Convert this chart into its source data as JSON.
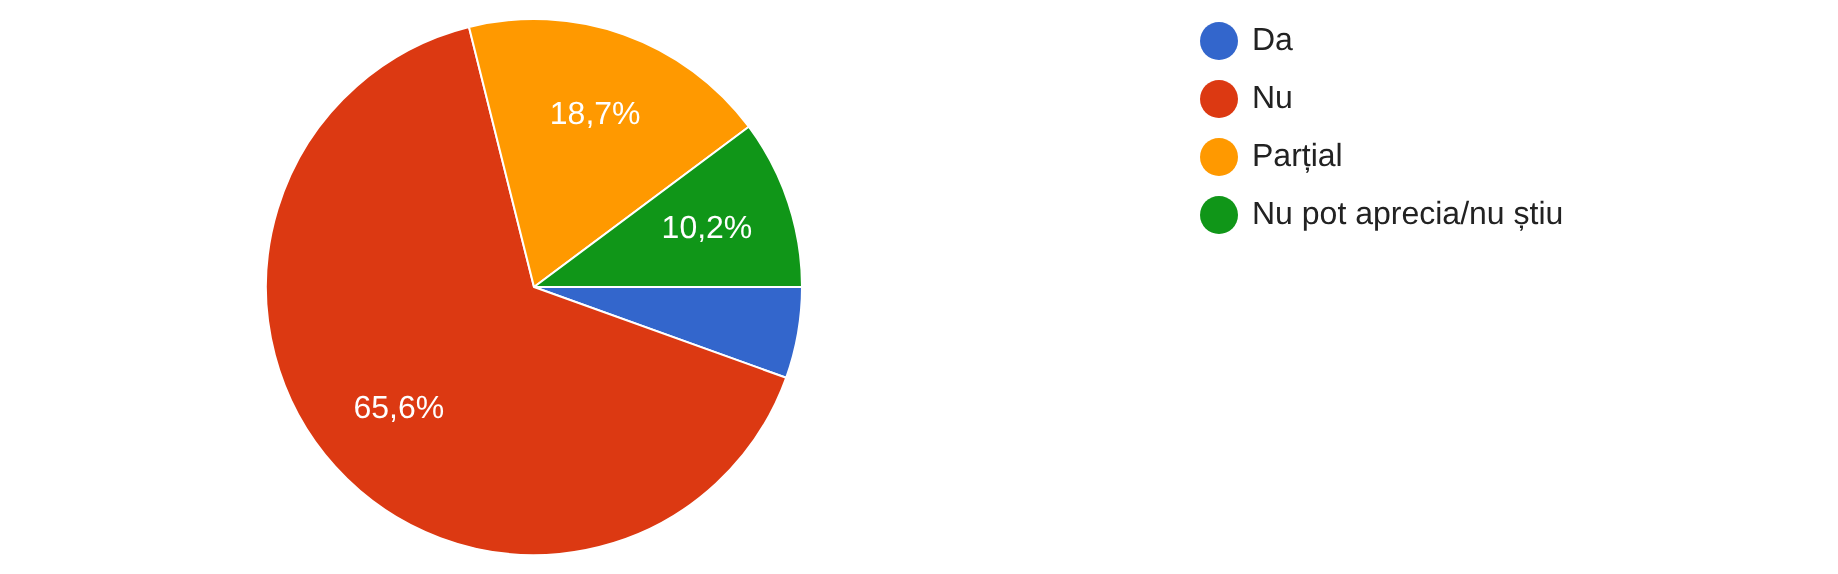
{
  "chart_data": {
    "type": "pie",
    "categories": [
      "Da",
      "Nu",
      "Parțial",
      "Nu pot aprecia/nu știu"
    ],
    "values": [
      5.5,
      65.6,
      18.7,
      10.2
    ],
    "colors": [
      "#3366cc",
      "#dc3912",
      "#ff9900",
      "#109618"
    ],
    "value_labels": [
      null,
      "65,6%",
      "18,7%",
      "10,2%"
    ],
    "legend": "right"
  }
}
